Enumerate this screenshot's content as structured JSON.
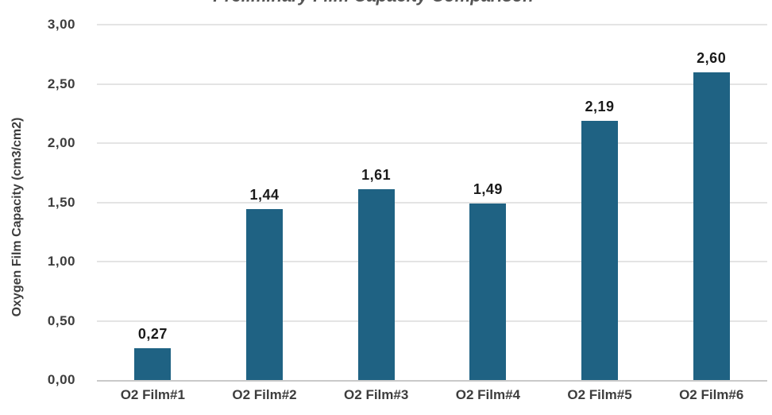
{
  "chart_data": {
    "type": "bar",
    "title": "Preliminary Film Capacity Comparison",
    "ylabel": "Oxygen Film Capacity (cm3/cm2)",
    "xlabel": "",
    "categories": [
      "O2 Film#1",
      "O2 Film#2",
      "O2 Film#3",
      "O2 Film#4",
      "O2 Film#5",
      "O2 Film#6"
    ],
    "values": [
      0.27,
      1.44,
      1.61,
      1.49,
      2.19,
      2.6
    ],
    "value_labels": [
      "0,27",
      "1,44",
      "1,61",
      "1,49",
      "2,19",
      "2,60"
    ],
    "ylim": [
      0,
      3
    ],
    "yticks": [
      0,
      0.5,
      1,
      1.5,
      2,
      2.5,
      3
    ],
    "ytick_labels": [
      "0,00",
      "0,50",
      "1,00",
      "1,50",
      "2,00",
      "2,50",
      "3,00"
    ],
    "grid": "horizontal",
    "legend": "none",
    "decimal_separator": "comma",
    "colors": {
      "bar": "#1f6283",
      "gridline": "#e4e4e4",
      "axis_line": "#c9c9c9",
      "value_label": "#1a1a1a",
      "tick_label": "#3d3d3d",
      "title": "#555555"
    }
  }
}
